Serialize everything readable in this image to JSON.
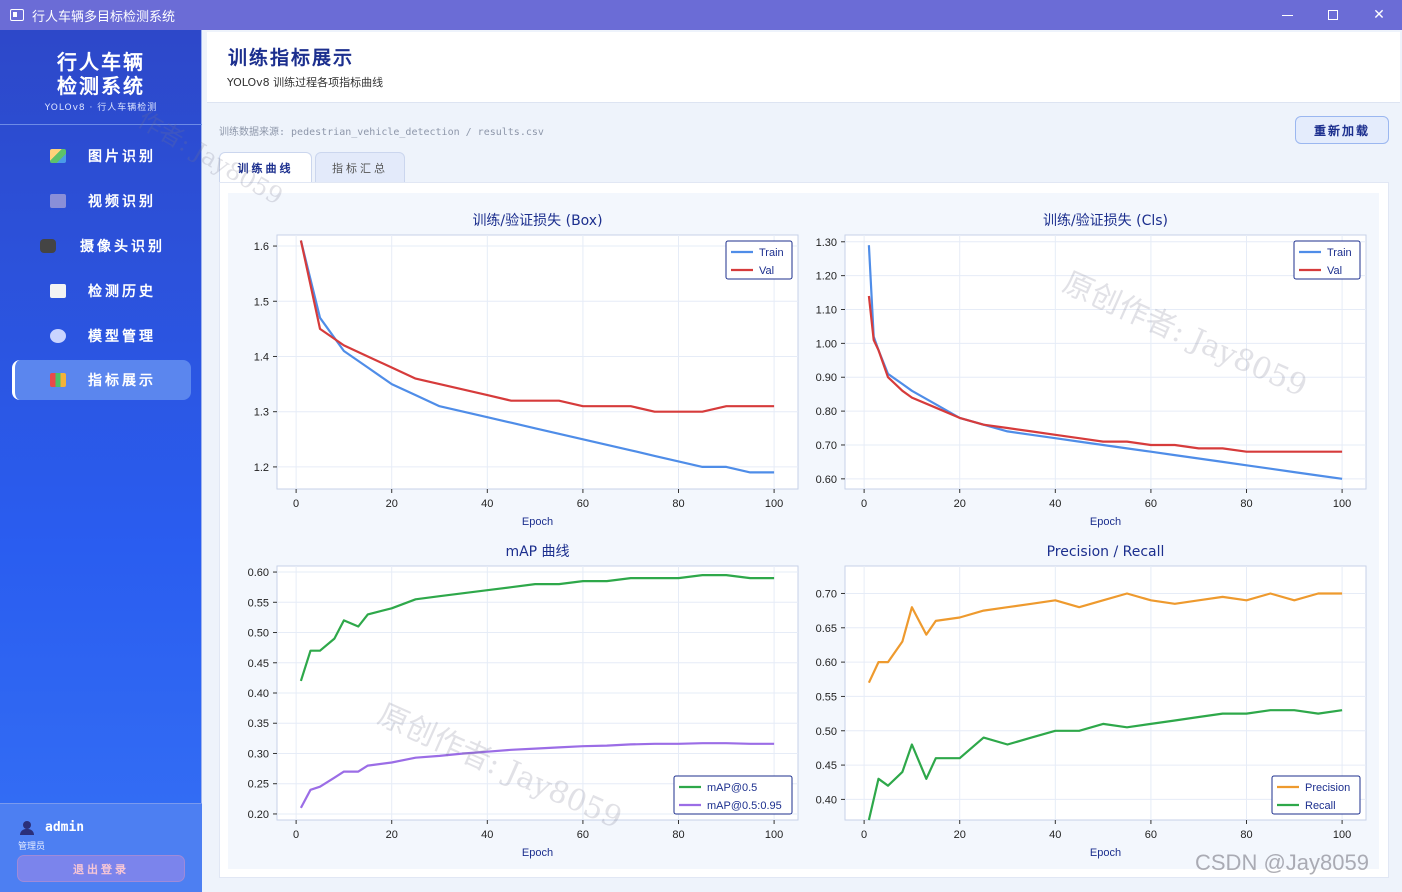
{
  "window": {
    "title": "行人车辆多目标检测系统"
  },
  "brand": {
    "line1": "行人车辆",
    "line2": "检测系统",
    "sub": "YOLOv8 · 行人车辆检测"
  },
  "nav": [
    {
      "label": "图片识别",
      "icon": "image-icon"
    },
    {
      "label": "视频识别",
      "icon": "film-icon"
    },
    {
      "label": "摄像头识别",
      "icon": "camera-icon"
    },
    {
      "label": "检测历史",
      "icon": "document-icon"
    },
    {
      "label": "模型管理",
      "icon": "gear-icon"
    },
    {
      "label": "指标展示",
      "icon": "bar-chart-icon"
    }
  ],
  "user": {
    "name": "admin",
    "role": "管理员",
    "logout": "退出登录"
  },
  "header": {
    "title": "训练指标展示",
    "subtitle": "YOLOv8 训练过程各项指标曲线"
  },
  "source": "训练数据来源: pedestrian_vehicle_detection / results.csv",
  "reload_label": "重新加载",
  "tabs": [
    {
      "label": "训练曲线"
    },
    {
      "label": "指标汇总"
    }
  ],
  "watermarks": {
    "w1": "原创作者: Jay8059",
    "w2": "原创作者: Jay8059",
    "w3": "作者: Jay8059"
  },
  "csdn": "CSDN @Jay8059",
  "colors": {
    "train": "#4f8de8",
    "val": "#d63b3b",
    "map50": "#2ea84a",
    "map5095": "#9b6de6",
    "precision": "#ee9a2e",
    "recall": "#2ea84a"
  },
  "chart_data": [
    {
      "type": "line",
      "title": "训练/验证损失 (Box)",
      "xlabel": "Epoch",
      "ylabel": "",
      "xlim": [
        -4,
        105
      ],
      "ylim": [
        1.16,
        1.62
      ],
      "xticks": [
        0,
        20,
        40,
        60,
        80,
        100
      ],
      "yticks": [
        1.2,
        1.3,
        1.4,
        1.5,
        1.6
      ],
      "legend": "top-right",
      "x": [
        1,
        5,
        10,
        15,
        20,
        25,
        30,
        35,
        40,
        45,
        50,
        55,
        60,
        65,
        70,
        75,
        80,
        85,
        90,
        95,
        100
      ],
      "series": [
        {
          "name": "Train",
          "values": [
            1.61,
            1.47,
            1.41,
            1.38,
            1.35,
            1.33,
            1.31,
            1.3,
            1.29,
            1.28,
            1.27,
            1.26,
            1.25,
            1.24,
            1.23,
            1.22,
            1.21,
            1.2,
            1.2,
            1.19,
            1.19
          ]
        },
        {
          "name": "Val",
          "values": [
            1.61,
            1.45,
            1.42,
            1.4,
            1.38,
            1.36,
            1.35,
            1.34,
            1.33,
            1.32,
            1.32,
            1.32,
            1.31,
            1.31,
            1.31,
            1.3,
            1.3,
            1.3,
            1.31,
            1.31,
            1.31
          ]
        }
      ]
    },
    {
      "type": "line",
      "title": "训练/验证损失 (Cls)",
      "xlabel": "Epoch",
      "ylabel": "",
      "xlim": [
        -4,
        105
      ],
      "ylim": [
        0.57,
        1.32
      ],
      "xticks": [
        0,
        20,
        40,
        60,
        80,
        100
      ],
      "yticks": [
        0.6,
        0.7,
        0.8,
        0.9,
        1.0,
        1.1,
        1.2,
        1.3
      ],
      "legend": "top-right",
      "x": [
        1,
        2,
        3,
        5,
        8,
        10,
        15,
        20,
        25,
        30,
        35,
        40,
        45,
        50,
        55,
        60,
        65,
        70,
        75,
        80,
        85,
        90,
        95,
        100
      ],
      "series": [
        {
          "name": "Train",
          "values": [
            1.29,
            1.02,
            0.98,
            0.91,
            0.88,
            0.86,
            0.82,
            0.78,
            0.76,
            0.74,
            0.73,
            0.72,
            0.71,
            0.7,
            0.69,
            0.68,
            0.67,
            0.66,
            0.65,
            0.64,
            0.63,
            0.62,
            0.61,
            0.6
          ]
        },
        {
          "name": "Val",
          "values": [
            1.14,
            1.01,
            0.98,
            0.9,
            0.86,
            0.84,
            0.81,
            0.78,
            0.76,
            0.75,
            0.74,
            0.73,
            0.72,
            0.71,
            0.71,
            0.7,
            0.7,
            0.69,
            0.69,
            0.68,
            0.68,
            0.68,
            0.68,
            0.68
          ]
        }
      ]
    },
    {
      "type": "line",
      "title": "mAP 曲线",
      "xlabel": "Epoch",
      "ylabel": "",
      "xlim": [
        -4,
        105
      ],
      "ylim": [
        0.19,
        0.61
      ],
      "xticks": [
        0,
        20,
        40,
        60,
        80,
        100
      ],
      "yticks": [
        0.2,
        0.25,
        0.3,
        0.35,
        0.4,
        0.45,
        0.5,
        0.55,
        0.6
      ],
      "legend": "bottom-right",
      "x": [
        1,
        3,
        5,
        8,
        10,
        13,
        15,
        20,
        25,
        30,
        35,
        40,
        45,
        50,
        55,
        60,
        65,
        70,
        75,
        80,
        85,
        90,
        95,
        100
      ],
      "series": [
        {
          "name": "mAP@0.5",
          "values": [
            0.42,
            0.47,
            0.47,
            0.49,
            0.52,
            0.51,
            0.53,
            0.54,
            0.555,
            0.56,
            0.565,
            0.57,
            0.575,
            0.58,
            0.58,
            0.585,
            0.585,
            0.59,
            0.59,
            0.59,
            0.595,
            0.595,
            0.59,
            0.59
          ]
        },
        {
          "name": "mAP@0.5:0.95",
          "values": [
            0.21,
            0.24,
            0.245,
            0.26,
            0.27,
            0.27,
            0.28,
            0.285,
            0.293,
            0.296,
            0.3,
            0.303,
            0.306,
            0.308,
            0.31,
            0.312,
            0.313,
            0.315,
            0.316,
            0.316,
            0.317,
            0.317,
            0.316,
            0.316
          ]
        }
      ]
    },
    {
      "type": "line",
      "title": "Precision / Recall",
      "xlabel": "Epoch",
      "ylabel": "",
      "xlim": [
        -4,
        105
      ],
      "ylim": [
        0.37,
        0.74
      ],
      "xticks": [
        0,
        20,
        40,
        60,
        80,
        100
      ],
      "yticks": [
        0.4,
        0.45,
        0.5,
        0.55,
        0.6,
        0.65,
        0.7
      ],
      "legend": "bottom-right",
      "x": [
        1,
        3,
        5,
        8,
        10,
        13,
        15,
        20,
        25,
        30,
        35,
        40,
        45,
        50,
        55,
        60,
        65,
        70,
        75,
        80,
        85,
        90,
        95,
        100
      ],
      "series": [
        {
          "name": "Precision",
          "values": [
            0.57,
            0.6,
            0.6,
            0.63,
            0.68,
            0.64,
            0.66,
            0.665,
            0.675,
            0.68,
            0.685,
            0.69,
            0.68,
            0.69,
            0.7,
            0.69,
            0.685,
            0.69,
            0.695,
            0.69,
            0.7,
            0.69,
            0.7,
            0.7
          ]
        },
        {
          "name": "Recall",
          "values": [
            0.37,
            0.43,
            0.42,
            0.44,
            0.48,
            0.43,
            0.46,
            0.46,
            0.49,
            0.48,
            0.49,
            0.5,
            0.5,
            0.51,
            0.505,
            0.51,
            0.515,
            0.52,
            0.525,
            0.525,
            0.53,
            0.53,
            0.525,
            0.53
          ]
        }
      ]
    }
  ]
}
